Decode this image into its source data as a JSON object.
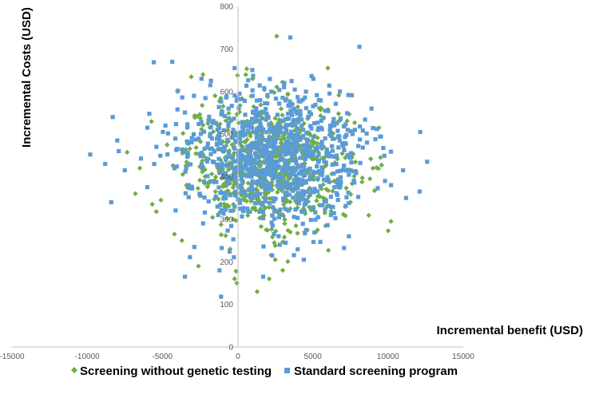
{
  "chart_data": {
    "type": "scatter",
    "title": "",
    "xlabel": "Incremental benefit (USD)",
    "ylabel": "Incremental Costs (USD)",
    "xlim": [
      -15000,
      15000
    ],
    "ylim": [
      0,
      800
    ],
    "x_ticks": [
      -15000,
      -10000,
      -5000,
      0,
      5000,
      10000,
      15000
    ],
    "y_ticks": [
      100,
      200,
      300,
      400,
      500,
      600,
      700,
      800
    ],
    "grid": false,
    "legend_position": "bottom",
    "series": [
      {
        "name": "Screening without genetic testing",
        "marker": "diamond",
        "color": "#70AD47",
        "cloud": {
          "count": 700,
          "x_mean": 2100,
          "x_sd": 2700,
          "y_mean": 430,
          "y_sd": 75
        },
        "points": [
          [
            2600,
            730
          ],
          [
            6000,
            655
          ],
          [
            -2300,
            640
          ],
          [
            0,
            638
          ],
          [
            1000,
            630
          ],
          [
            -1900,
            535
          ],
          [
            -3700,
            250
          ],
          [
            -4200,
            265
          ],
          [
            -2600,
            190
          ],
          [
            -5100,
            345
          ],
          [
            -5400,
            318
          ],
          [
            -500,
            230
          ],
          [
            -200,
            160
          ],
          [
            -50,
            150
          ],
          [
            -100,
            178
          ],
          [
            1300,
            130
          ],
          [
            2100,
            160
          ],
          [
            2500,
            205
          ],
          [
            3000,
            180
          ],
          [
            3500,
            270
          ],
          [
            9500,
            445
          ],
          [
            9000,
            420
          ],
          [
            8800,
            395
          ],
          [
            -6500,
            420
          ],
          [
            -6800,
            360
          ],
          [
            -4000,
            600
          ],
          [
            -1500,
            590
          ],
          [
            5200,
            270
          ],
          [
            5800,
            315
          ],
          [
            7500,
            340
          ]
        ]
      },
      {
        "name": "Standard screening program",
        "marker": "square",
        "color": "#5B9BD5",
        "cloud": {
          "count": 900,
          "x_mean": 2300,
          "x_sd": 3000,
          "y_mean": 440,
          "y_sd": 80
        },
        "points": [
          [
            3500,
            727
          ],
          [
            8100,
            705
          ],
          [
            -200,
            655
          ],
          [
            -9800,
            452
          ],
          [
            -8800,
            430
          ],
          [
            -8300,
            540
          ],
          [
            -8400,
            340
          ],
          [
            -8000,
            485
          ],
          [
            -7500,
            415
          ],
          [
            -7900,
            460
          ],
          [
            12600,
            435
          ],
          [
            12100,
            365
          ],
          [
            11200,
            350
          ],
          [
            11000,
            415
          ],
          [
            10200,
            380
          ],
          [
            9800,
            390
          ],
          [
            -3500,
            165
          ],
          [
            -1100,
            118
          ],
          [
            -1200,
            180
          ],
          [
            -4800,
            520
          ],
          [
            -4200,
            420
          ],
          [
            -2900,
            590
          ],
          [
            1700,
            165
          ],
          [
            2300,
            215
          ],
          [
            2800,
            240
          ],
          [
            4400,
            205
          ],
          [
            6200,
            310
          ],
          [
            7400,
            260
          ],
          [
            8600,
            480
          ],
          [
            8900,
            560
          ],
          [
            7800,
            510
          ],
          [
            1000,
            590
          ],
          [
            -600,
            560
          ],
          [
            -2400,
            630
          ],
          [
            3100,
            620
          ],
          [
            5400,
            580
          ],
          [
            6800,
            600
          ],
          [
            -6000,
            515
          ],
          [
            -5400,
            470
          ],
          [
            4600,
            345
          ]
        ]
      }
    ]
  }
}
